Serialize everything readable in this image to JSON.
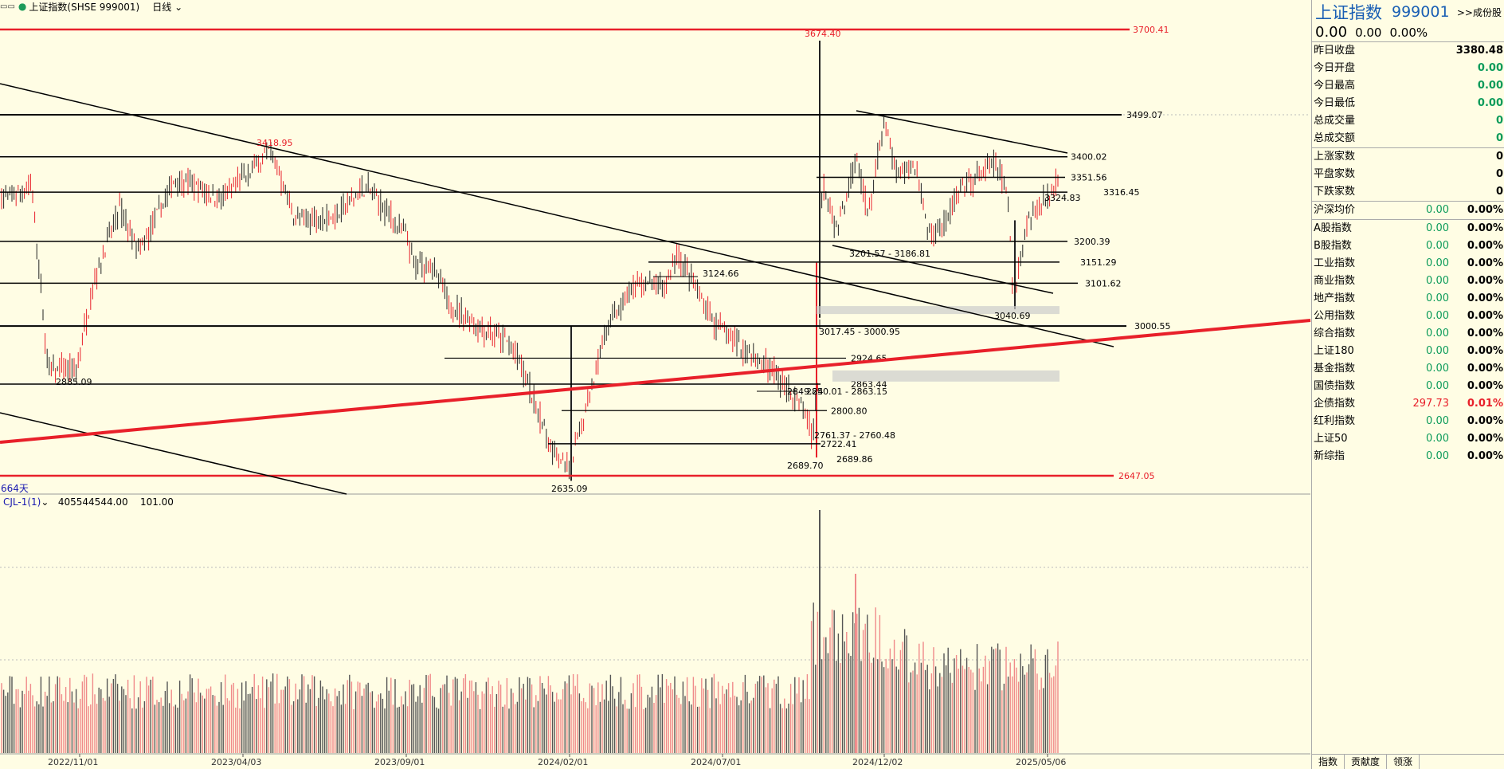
{
  "toolbar": {
    "icon": "window-controls-icon",
    "title": "上证指数(SHSE 999001)",
    "period": "日线"
  },
  "chart": {
    "days_label": "664天",
    "indicator_name": "CJL-1(1)",
    "indicator_v1": "405544544.00",
    "indicator_v2": "101.00",
    "x_ticks": [
      "2022/11/01",
      "2023/04/03",
      "2023/09/01",
      "2024/02/01",
      "2024/07/01",
      "2024/12/02",
      "2025/05/06"
    ],
    "price_labels": [
      "3700.41",
      "3674.40",
      "3499.07",
      "3418.95",
      "3400.02",
      "3351.56",
      "3324.83",
      "3316.45",
      "3200.39",
      "3201.57 - 3186.81",
      "3151.29",
      "3124.66",
      "3101.62",
      "3040.69",
      "3017.45 - 3000.95",
      "3000.55",
      "2924.65",
      "2885.09",
      "2863.44",
      "2849.24",
      "2850.01 - 2863.15",
      "2800.80",
      "2761.37 - 2760.48",
      "2722.41",
      "2689.70",
      "2689.86",
      "2647.05",
      "2635.09"
    ],
    "colors": {
      "up": "#e8202a",
      "down": "#222222",
      "trend": "#e8202a",
      "line": "#000000"
    }
  },
  "panel": {
    "name": "上证指数",
    "code": "999001",
    "constituents_link": ">>成份股",
    "price": "0.00",
    "change": "0.00",
    "change_pct": "0.00%",
    "stats": [
      {
        "label": "昨日收盘",
        "value": "3380.48"
      },
      {
        "label": "今日开盘",
        "value": "0.00"
      },
      {
        "label": "今日最高",
        "value": "0.00"
      },
      {
        "label": "今日最低",
        "value": "0.00"
      },
      {
        "label": "总成交量",
        "value": "0"
      },
      {
        "label": "总成交额",
        "value": "0"
      }
    ],
    "counts": [
      {
        "label": "上涨家数",
        "value": "0"
      },
      {
        "label": "平盘家数",
        "value": "0"
      },
      {
        "label": "下跌家数",
        "value": "0"
      }
    ],
    "avg": {
      "label": "沪深均价",
      "value": "0.00",
      "pct": "0.00%"
    },
    "indices": [
      {
        "label": "A股指数",
        "value": "0.00",
        "pct": "0.00%"
      },
      {
        "label": "B股指数",
        "value": "0.00",
        "pct": "0.00%"
      },
      {
        "label": "工业指数",
        "value": "0.00",
        "pct": "0.00%"
      },
      {
        "label": "商业指数",
        "value": "0.00",
        "pct": "0.00%"
      },
      {
        "label": "地产指数",
        "value": "0.00",
        "pct": "0.00%"
      },
      {
        "label": "公用指数",
        "value": "0.00",
        "pct": "0.00%"
      },
      {
        "label": "综合指数",
        "value": "0.00",
        "pct": "0.00%"
      },
      {
        "label": "上证180",
        "value": "0.00",
        "pct": "0.00%"
      },
      {
        "label": "基金指数",
        "value": "0.00",
        "pct": "0.00%"
      },
      {
        "label": "国债指数",
        "value": "0.00",
        "pct": "0.00%"
      },
      {
        "label": "企债指数",
        "value": "297.73",
        "pct": "0.01%"
      },
      {
        "label": "红利指数",
        "value": "0.00",
        "pct": "0.00%"
      },
      {
        "label": "上证50",
        "value": "0.00",
        "pct": "0.00%"
      },
      {
        "label": "新综指",
        "value": "0.00",
        "pct": "0.00%"
      }
    ],
    "tabs": [
      "指数",
      "贡献度",
      "领涨"
    ]
  }
}
